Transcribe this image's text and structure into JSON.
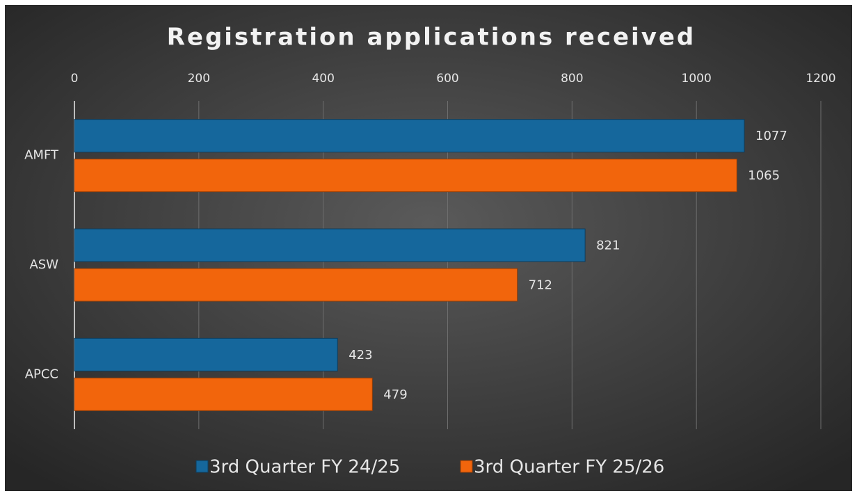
{
  "chart_data": {
    "type": "bar",
    "orientation": "horizontal",
    "title": "Registration applications received",
    "categories": [
      "AMFT",
      "ASW",
      "APCC"
    ],
    "series": [
      {
        "name": "3rd Quarter FY 24/25",
        "color": "#15679c",
        "values": [
          1077,
          821,
          423
        ]
      },
      {
        "name": "3rd Quarter FY 25/26",
        "color": "#f2650c",
        "values": [
          1065,
          712,
          479
        ]
      }
    ],
    "xlim": [
      0,
      1200
    ],
    "xticks": [
      0,
      200,
      400,
      600,
      800,
      1000,
      1200
    ],
    "grid": true,
    "legend": "bottom"
  }
}
